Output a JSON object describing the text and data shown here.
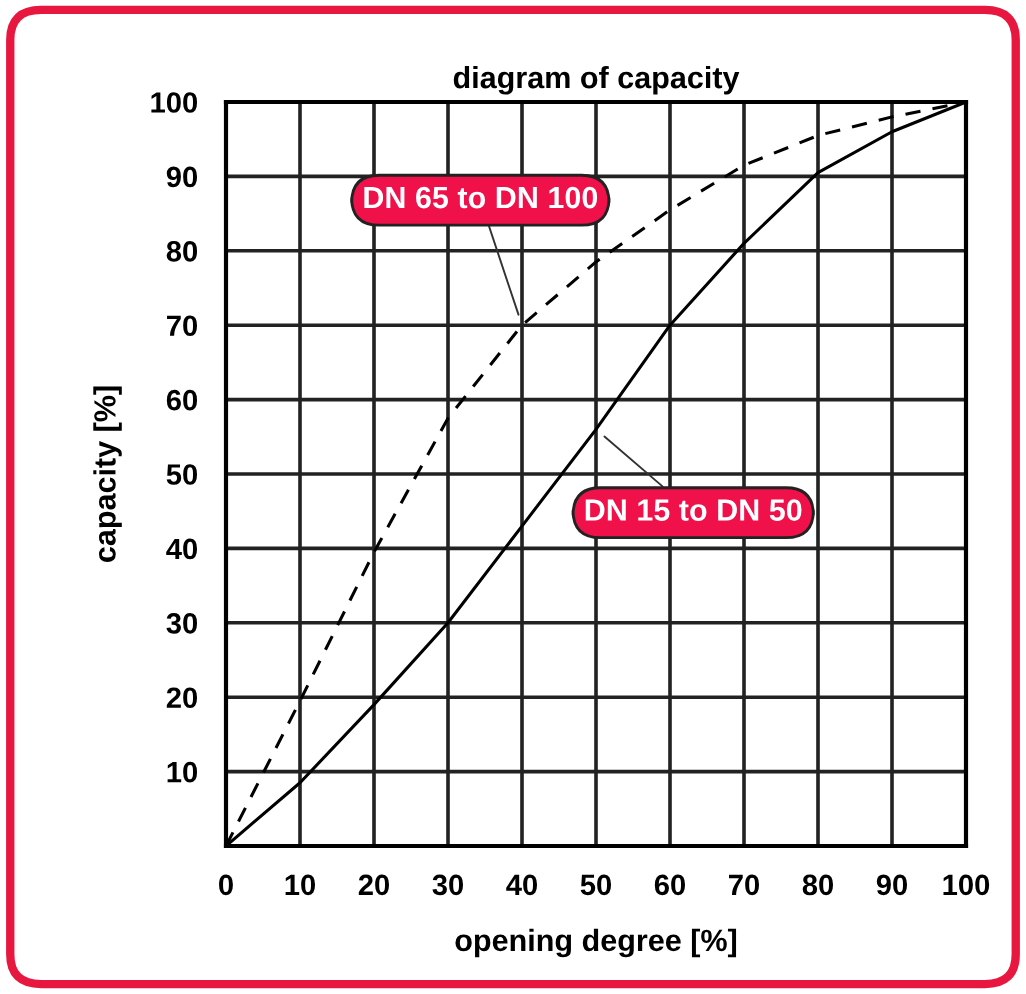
{
  "chart_data": {
    "type": "line",
    "title": "diagram of capacity",
    "xlabel": "opening degree [%]",
    "ylabel": "capacity [%]",
    "x": [
      0,
      10,
      20,
      30,
      40,
      50,
      60,
      70,
      80,
      90,
      100
    ],
    "series": [
      {
        "name": "DN 65 to DN 100",
        "color": "#000000",
        "line_style": "dashed",
        "values": [
          0,
          19.5,
          39.5,
          57.5,
          70,
          78.5,
          85.5,
          91.5,
          95.5,
          98,
          100
        ]
      },
      {
        "name": "DN 15 to DN 50",
        "color": "#000000",
        "line_style": "solid",
        "values": [
          0,
          8.5,
          19,
          30,
          43,
          56,
          70,
          81,
          90.5,
          96,
          100
        ]
      }
    ],
    "xlim": [
      0,
      100
    ],
    "ylim": [
      0,
      100
    ],
    "xticks": [
      0,
      10,
      20,
      30,
      40,
      50,
      60,
      70,
      80,
      90,
      100
    ],
    "yticks": [
      10,
      20,
      30,
      40,
      50,
      60,
      70,
      80,
      90,
      100
    ],
    "grid": true,
    "legend": false,
    "marker": "none"
  }
}
